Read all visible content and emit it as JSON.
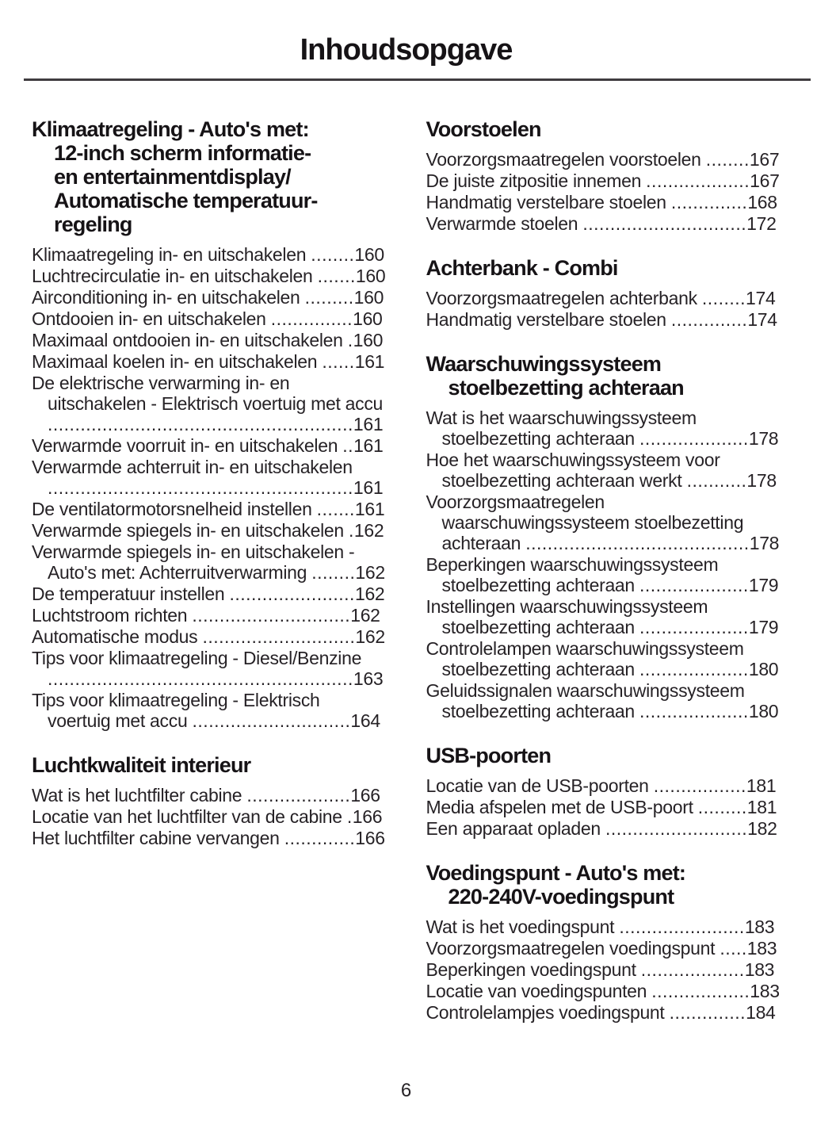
{
  "page": {
    "title": "Inhoudsopgave",
    "page_number": "6"
  },
  "colors": {
    "text": "#262226",
    "heading": "#161316",
    "divider": "#3f3c3f",
    "background": "#ffffff"
  },
  "columns": [
    {
      "name": "left",
      "sections": [
        {
          "title_lines": [
            "Klimaatregeling - Auto's met:",
            "12-inch scherm informatie-",
            "en entertainmentdisplay/",
            "Automatische temperatuur-",
            "regeling"
          ],
          "entries": [
            {
              "text": "Klimaatregeling in- en uitschakelen",
              "page": "160"
            },
            {
              "text": "Luchtrecirculatie in- en uitschakelen",
              "page": "160"
            },
            {
              "text": "Airconditioning in- en uitschakelen",
              "page": "160"
            },
            {
              "text": "Ontdooien in- en uitschakelen",
              "page": "160"
            },
            {
              "text": "Maximaal ontdooien in- en uitschakelen",
              "page": "160"
            },
            {
              "text": "Maximaal koelen in- en uitschakelen",
              "page": "161"
            },
            {
              "text": "De elektrische verwarming in- en uitschakelen - Elektrisch voertuig met accu",
              "page": "161"
            },
            {
              "text": "Verwarmde voorruit in- en uitschakelen",
              "page": "161"
            },
            {
              "text": "Verwarmde achterruit in- en uitschakelen",
              "page": "161"
            },
            {
              "text": "De ventilatormotorsnelheid instellen",
              "page": "161"
            },
            {
              "text": "Verwarmde spiegels in- en uitschakelen",
              "page": "162"
            },
            {
              "text": "Verwarmde spiegels in- en uitschakelen - Auto's met: Achterruitverwarming",
              "page": "162"
            },
            {
              "text": "De temperatuur instellen",
              "page": "162"
            },
            {
              "text": "Luchtstroom richten",
              "page": "162"
            },
            {
              "text": "Automatische modus",
              "page": "162"
            },
            {
              "text": "Tips voor klimaatregeling - Diesel/Benzine",
              "page": "163"
            },
            {
              "text": "Tips voor klimaatregeling - Elektrisch voertuig met accu",
              "page": "164"
            }
          ]
        },
        {
          "title_lines": [
            "Luchtkwaliteit interieur"
          ],
          "entries": [
            {
              "text": "Wat is het luchtfilter cabine",
              "page": "166"
            },
            {
              "text": "Locatie van het luchtfilter van de cabine",
              "page": "166"
            },
            {
              "text": "Het luchtfilter cabine vervangen",
              "page": "166"
            }
          ]
        }
      ]
    },
    {
      "name": "right",
      "sections": [
        {
          "title_lines": [
            "Voorstoelen"
          ],
          "entries": [
            {
              "text": "Voorzorgsmaatregelen voorstoelen",
              "page": "167"
            },
            {
              "text": "De juiste zitpositie innemen",
              "page": "167"
            },
            {
              "text": "Handmatig verstelbare stoelen",
              "page": "168"
            },
            {
              "text": "Verwarmde stoelen",
              "page": "172"
            }
          ]
        },
        {
          "title_lines": [
            "Achterbank - Combi"
          ],
          "entries": [
            {
              "text": "Voorzorgsmaatregelen achterbank",
              "page": "174"
            },
            {
              "text": "Handmatig verstelbare stoelen",
              "page": "174"
            }
          ]
        },
        {
          "title_lines": [
            "Waarschuwingssysteem",
            "stoelbezetting achteraan"
          ],
          "entries": [
            {
              "text": "Wat is het waarschuwingssysteem stoelbezetting achteraan",
              "page": "178"
            },
            {
              "text": "Hoe het waarschuwingssysteem voor stoelbezetting achteraan werkt",
              "page": "178"
            },
            {
              "text": "Voorzorgsmaatregelen waarschuwingssysteem stoelbezetting achteraan",
              "page": "178"
            },
            {
              "text": "Beperkingen waarschuwingssysteem stoelbezetting achteraan",
              "page": "179"
            },
            {
              "text": "Instellingen waarschuwingssysteem stoelbezetting achteraan",
              "page": "179"
            },
            {
              "text": "Controlelampen waarschuwingssysteem stoelbezetting achteraan",
              "page": "180"
            },
            {
              "text": "Geluidssignalen waarschuwingssysteem stoelbezetting achteraan",
              "page": "180"
            }
          ]
        },
        {
          "title_lines": [
            "USB-poorten"
          ],
          "entries": [
            {
              "text": "Locatie van de USB-poorten",
              "page": "181"
            },
            {
              "text": "Media afspelen met de USB-poort",
              "page": "181"
            },
            {
              "text": "Een apparaat opladen",
              "page": "182"
            }
          ]
        },
        {
          "title_lines": [
            "Voedingspunt - Auto's met:",
            "220-240V-voedingspunt"
          ],
          "entries": [
            {
              "text": "Wat is het voedingspunt",
              "page": "183"
            },
            {
              "text": "Voorzorgsmaatregelen voedingspunt",
              "page": "183"
            },
            {
              "text": "Beperkingen voedingspunt",
              "page": "183"
            },
            {
              "text": "Locatie van voedingspunten",
              "page": "183"
            },
            {
              "text": "Controlelampjes voedingspunt",
              "page": "184"
            }
          ]
        }
      ]
    }
  ]
}
